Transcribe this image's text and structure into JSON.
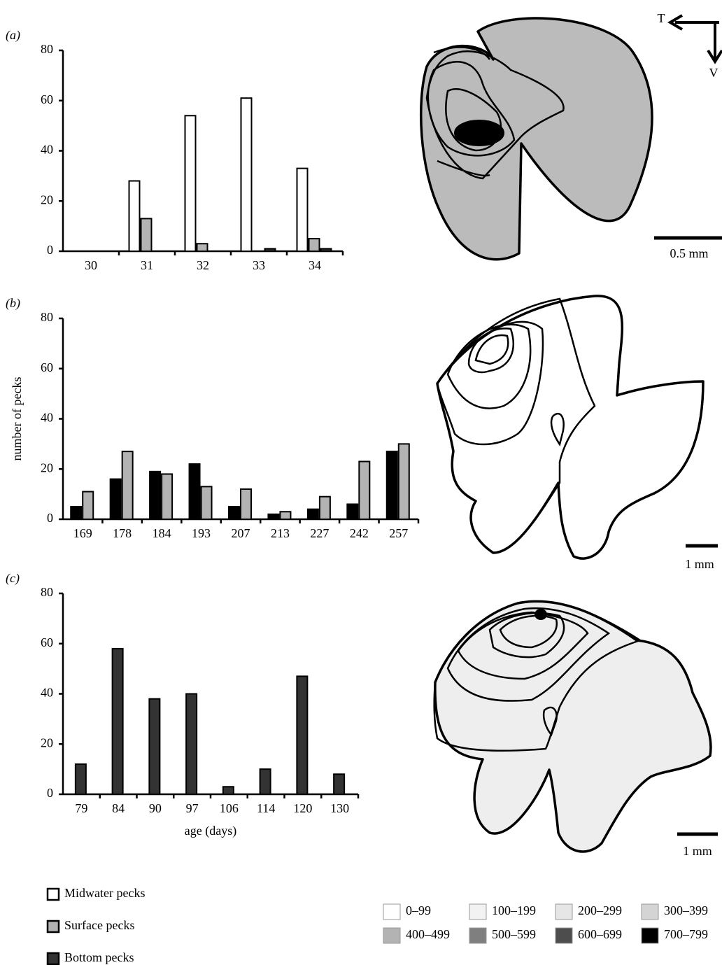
{
  "chart_data": [
    {
      "type": "bar",
      "panel": "(a)",
      "categories": [
        30,
        31,
        32,
        33,
        34
      ],
      "series": [
        {
          "name": "Midwater pecks",
          "color": "#ffffff",
          "values": [
            0,
            28,
            54,
            61,
            33
          ]
        },
        {
          "name": "Surface pecks",
          "color": "#b3b3b3",
          "values": [
            0,
            13,
            3,
            0,
            5
          ]
        },
        {
          "name": "Bottom pecks",
          "color": "#333333",
          "values": [
            0,
            0,
            0,
            1,
            1
          ]
        }
      ],
      "ylim": [
        0,
        80
      ],
      "yticks": [
        0,
        20,
        40,
        60,
        80
      ]
    },
    {
      "type": "bar",
      "panel": "(b)",
      "ylabel": "number of pecks",
      "categories": [
        169,
        178,
        184,
        193,
        207,
        213,
        227,
        242,
        257
      ],
      "series": [
        {
          "color": "#000000",
          "values": [
            5,
            16,
            19,
            22,
            5,
            2,
            4,
            6,
            27
          ]
        },
        {
          "color": "#b3b3b3",
          "values": [
            11,
            27,
            18,
            13,
            12,
            3,
            9,
            23,
            30
          ]
        }
      ],
      "ylim": [
        0,
        80
      ],
      "yticks": [
        0,
        20,
        40,
        60,
        80
      ]
    },
    {
      "type": "bar",
      "panel": "(c)",
      "xlabel": "age (days)",
      "categories": [
        79,
        84,
        90,
        97,
        106,
        114,
        120,
        130
      ],
      "series": [
        {
          "color": "#333333",
          "values": [
            12,
            58,
            38,
            40,
            3,
            10,
            47,
            8
          ]
        }
      ],
      "ylim": [
        0,
        80
      ],
      "yticks": [
        0,
        20,
        40,
        60,
        80
      ]
    }
  ],
  "orientation": {
    "temporal": "T",
    "ventral": "V"
  },
  "maps": [
    {
      "scale": "0.5 mm"
    },
    {
      "scale": "1 mm"
    },
    {
      "scale": "1 mm"
    }
  ],
  "density_legend": [
    {
      "label": "0–99",
      "color": "#ffffff"
    },
    {
      "label": "100–199",
      "color": "#f2f2f2"
    },
    {
      "label": "200–299",
      "color": "#e6e6e6"
    },
    {
      "label": "300–399",
      "color": "#d4d4d4"
    },
    {
      "label": "400–499",
      "color": "#b3b3b3"
    },
    {
      "label": "500–599",
      "color": "#7f7f7f"
    },
    {
      "label": "600–699",
      "color": "#4d4d4d"
    },
    {
      "label": "700–799",
      "color": "#000000"
    }
  ]
}
